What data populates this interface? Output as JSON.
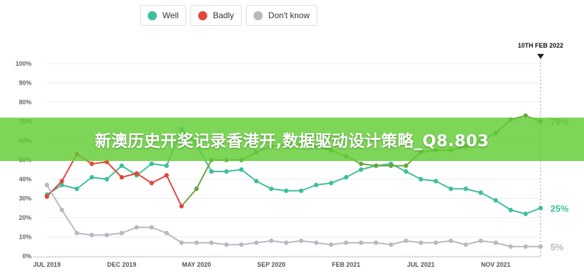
{
  "legend": [
    {
      "label": "Well",
      "color": "#3dbf9c"
    },
    {
      "label": "Badly",
      "color": "#e0483a"
    },
    {
      "label": "Don't know",
      "color": "#b7b9c3"
    }
  ],
  "marker": {
    "label": "10TH FEB 2022"
  },
  "banner": {
    "text": "新澳历史开奖记录香港开,数据驱动设计策略_Q8.803"
  },
  "chart_data": {
    "type": "line",
    "ylim": [
      0,
      100
    ],
    "yticks": [
      "0%",
      "10%",
      "20%",
      "30%",
      "40%",
      "50%",
      "60%",
      "70%",
      "80%",
      "90%",
      "100%"
    ],
    "xticks": [
      {
        "label": "JUL 2019",
        "i": 0
      },
      {
        "label": "DEC 2019",
        "i": 5
      },
      {
        "label": "MAY 2020",
        "i": 10
      },
      {
        "label": "SEP 2020",
        "i": 15
      },
      {
        "label": "FEB 2021",
        "i": 20
      },
      {
        "label": "JUL 2021",
        "i": 25
      },
      {
        "label": "NOV 2021",
        "i": 30
      }
    ],
    "series": [
      {
        "name": "Well",
        "color": "#3dbf9c",
        "end_label": "25%",
        "values": [
          32,
          37,
          35,
          41,
          40,
          47,
          42,
          48,
          47,
          66,
          58,
          44,
          44,
          45,
          39,
          35,
          34,
          34,
          37,
          38,
          41,
          45,
          47,
          48,
          44,
          40,
          39,
          35,
          35,
          33,
          29,
          24,
          22,
          25
        ]
      },
      {
        "name": "Badly",
        "color": "#66a83c",
        "end_label": "70%",
        "values": [
          31,
          39,
          53,
          48,
          49,
          41,
          43,
          38,
          42,
          26,
          35,
          50,
          50,
          50,
          54,
          57,
          58,
          58,
          57,
          55,
          52,
          48,
          47,
          47,
          47,
          54,
          55,
          55,
          57,
          60,
          64,
          71,
          73,
          70
        ]
      },
      {
        "name": "Don't know",
        "color": "#b7b9c3",
        "end_label": "5%",
        "values": [
          37,
          24,
          12,
          11,
          11,
          12,
          15,
          15,
          12,
          7,
          7,
          7,
          6,
          6,
          7,
          8,
          7,
          8,
          7,
          6,
          7,
          7,
          7,
          6,
          8,
          7,
          7,
          8,
          6,
          8,
          7,
          5,
          5,
          5
        ]
      }
    ],
    "badly_red_segment_end": 9,
    "badly_red_color": "#e0483a"
  }
}
